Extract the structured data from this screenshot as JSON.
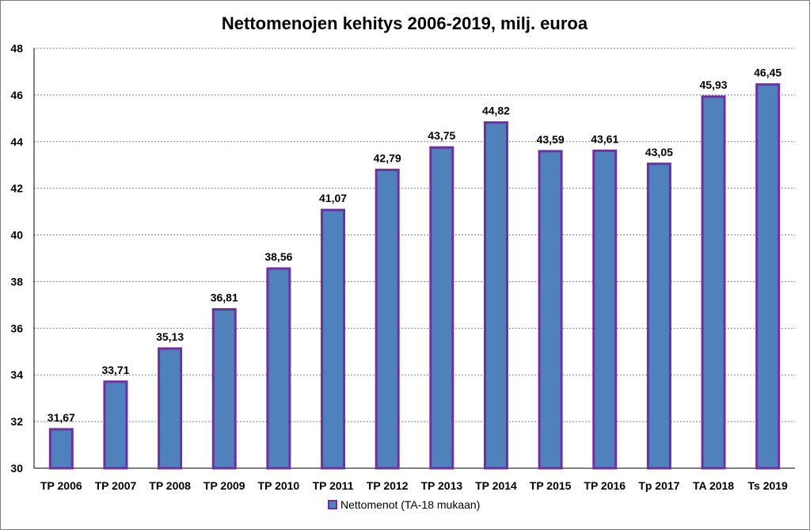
{
  "chart_data": {
    "type": "bar",
    "title": "Nettomenojen kehitys 2006-2019, milj. euroa",
    "categories": [
      "TP 2006",
      "TP 2007",
      "TP 2008",
      "TP 2009",
      "TP 2010",
      "TP 2011",
      "TP 2012",
      "TP 2013",
      "TP 2014",
      "TP 2015",
      "TP 2016",
      "Tp 2017",
      "TA 2018",
      "Ts 2019"
    ],
    "series": [
      {
        "name": "Nettomenot (TA-18 mukaan)",
        "values": [
          31.67,
          33.71,
          35.13,
          36.81,
          38.56,
          41.07,
          42.79,
          43.75,
          44.82,
          43.59,
          43.61,
          43.05,
          45.93,
          46.45
        ],
        "value_labels": [
          "31,67",
          "33,71",
          "35,13",
          "36,81",
          "38,56",
          "41,07",
          "42,79",
          "43,75",
          "44,82",
          "43,59",
          "43,61",
          "43,05",
          "45,93",
          "46,45"
        ]
      }
    ],
    "ylim": [
      30,
      48
    ],
    "yticks": [
      "30",
      "32",
      "34",
      "36",
      "38",
      "40",
      "42",
      "44",
      "46",
      "48"
    ],
    "grid": true,
    "legend_position": "bottom",
    "colors": {
      "bar_fill": "#4f81bd",
      "bar_border": "#7030a0",
      "grid": "#808080"
    }
  }
}
